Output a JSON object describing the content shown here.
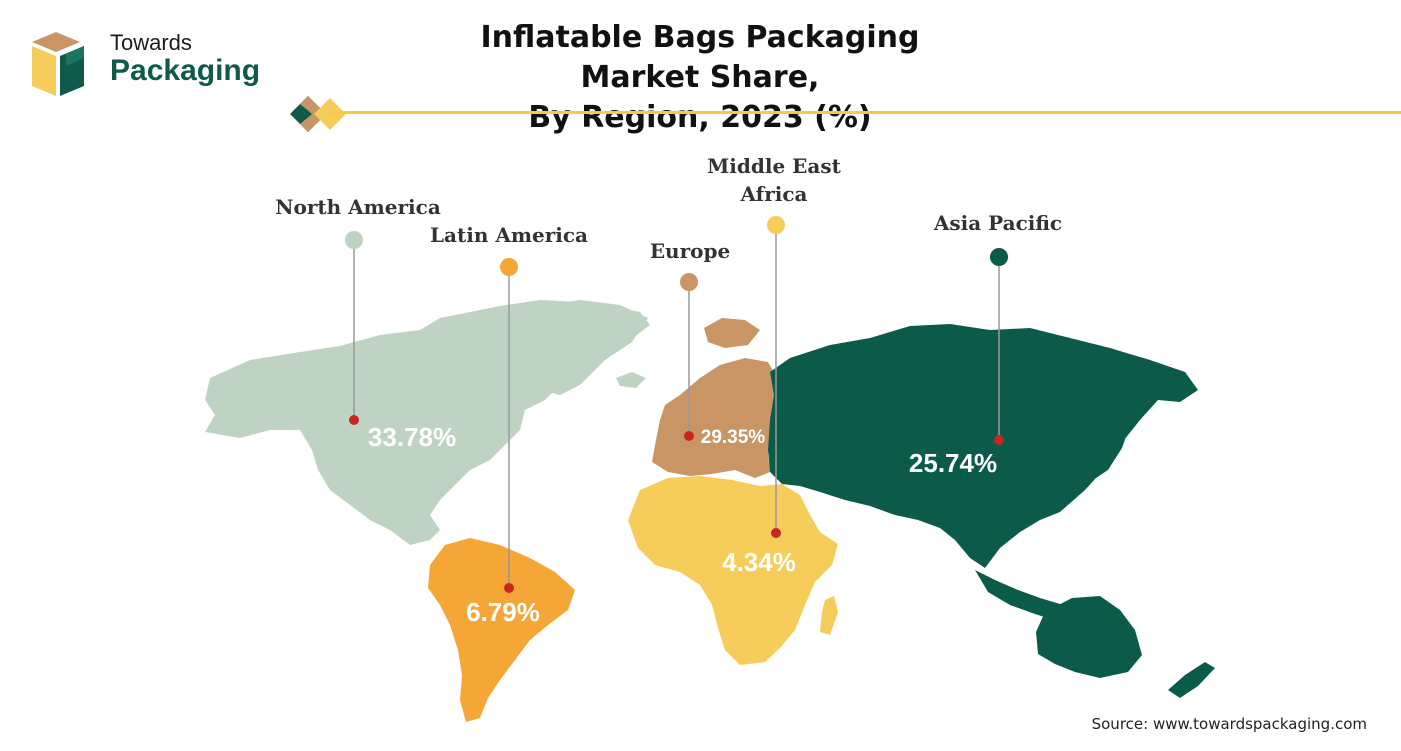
{
  "brand": {
    "line1": "Towards",
    "line2": "Packaging"
  },
  "title": {
    "line1": "Inflatable Bags Packaging Market Share,",
    "line2": "By Region, 2023 (%)"
  },
  "source": "Source: www.towardspackaging.com",
  "colors": {
    "north_america": "#bfd3c2",
    "latin_america": "#f4a636",
    "europe": "#c99565",
    "middle_east_africa": "#f6cd5a",
    "asia_pacific": "#0b5a4a",
    "marker": "#c8261f",
    "accent_line": "#f5c94a"
  },
  "regions": [
    {
      "key": "north_america",
      "name": "North America",
      "value": "33.78%"
    },
    {
      "key": "latin_america",
      "name": "Latin America",
      "value": "6.79%"
    },
    {
      "key": "europe",
      "name": "Europe",
      "value": "29.35%"
    },
    {
      "key": "middle_east_africa",
      "name_line1": "Middle East",
      "name_line2": "Africa",
      "value": "4.34%"
    },
    {
      "key": "asia_pacific",
      "name": "Asia Pacific",
      "value": "25.74%"
    }
  ]
}
